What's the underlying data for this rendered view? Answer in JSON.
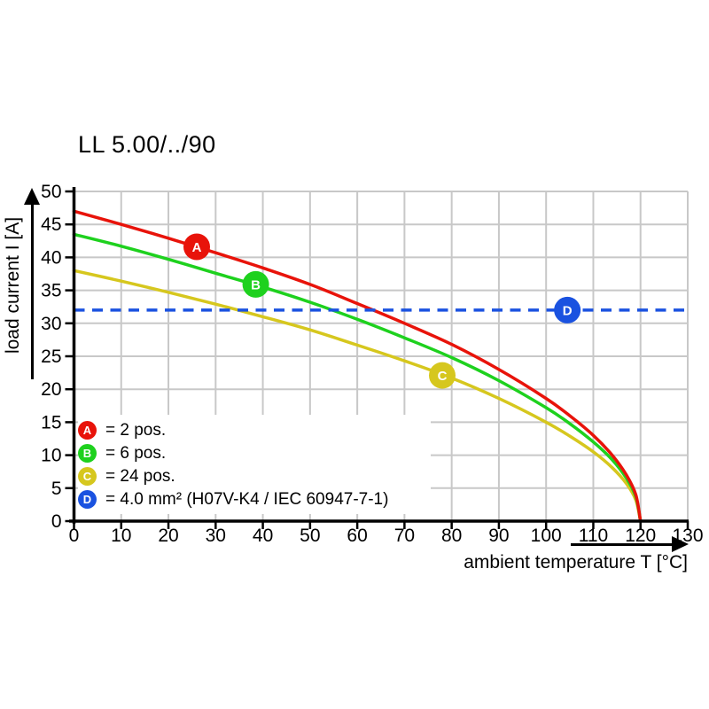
{
  "chart_data": {
    "type": "line",
    "title": "LL 5.00/../90",
    "xlabel": "ambient temperature T [°C]",
    "ylabel": "load current I [A]",
    "xlim": [
      0,
      130
    ],
    "ylim": [
      0,
      50
    ],
    "x_ticks": [
      0,
      10,
      20,
      30,
      40,
      50,
      60,
      70,
      80,
      90,
      100,
      110,
      120,
      130
    ],
    "y_ticks": [
      0,
      5,
      10,
      15,
      20,
      25,
      30,
      35,
      40,
      45,
      50
    ],
    "grid": true,
    "legend_position": "bottom-left",
    "colors": {
      "grid": "#c8c8c8",
      "axis": "#000000",
      "background": "#ffffff",
      "marker_letter": "#ffffff"
    },
    "series": [
      {
        "id": "A",
        "label": "2 pos.",
        "color": "#e8130a",
        "line": "solid",
        "x": [
          0,
          10,
          20,
          30,
          40,
          50,
          60,
          70,
          80,
          90,
          100,
          105,
          110,
          114,
          117,
          119,
          120
        ],
        "y": [
          47,
          45,
          42.9,
          40.7,
          38.4,
          35.9,
          33,
          30,
          26.8,
          23,
          18.6,
          16,
          13,
          10,
          7,
          4,
          0
        ],
        "marker": {
          "letter": "A",
          "x": 26,
          "y": 41.6
        }
      },
      {
        "id": "B",
        "label": "6 pos.",
        "color": "#1ed11e",
        "line": "solid",
        "x": [
          0,
          10,
          20,
          30,
          40,
          50,
          60,
          70,
          80,
          90,
          100,
          105,
          110,
          114,
          117,
          119,
          120
        ],
        "y": [
          43.5,
          41.7,
          39.7,
          37.6,
          35.5,
          33.2,
          30.6,
          27.8,
          24.8,
          21.3,
          17.2,
          14.8,
          12,
          9.3,
          6.5,
          3.7,
          0
        ],
        "marker": {
          "letter": "B",
          "x": 38.5,
          "y": 35.9
        }
      },
      {
        "id": "C",
        "label": "24 pos.",
        "color": "#d6c71e",
        "line": "solid",
        "x": [
          0,
          10,
          20,
          30,
          40,
          50,
          60,
          70,
          80,
          90,
          100,
          105,
          110,
          114,
          117,
          119,
          120
        ],
        "y": [
          38,
          36.4,
          34.7,
          32.9,
          31,
          29,
          26.7,
          24.3,
          21.7,
          18.6,
          15,
          12.9,
          10.5,
          8.1,
          5.7,
          3.2,
          0
        ],
        "marker": {
          "letter": "C",
          "x": 78,
          "y": 22.1
        }
      },
      {
        "id": "D",
        "label": "4.0 mm² (H07V-K4 / IEC 60947-7-1)",
        "color": "#1a52e0",
        "line": "dashed",
        "x": [
          0,
          130
        ],
        "y": [
          32,
          32
        ],
        "marker": {
          "letter": "D",
          "x": 104.5,
          "y": 32
        }
      }
    ],
    "legend": {
      "items": [
        {
          "letter": "A",
          "text": "= 2 pos."
        },
        {
          "letter": "B",
          "text": "= 6 pos."
        },
        {
          "letter": "C",
          "text": "= 24 pos."
        },
        {
          "letter": "D",
          "text": "= 4.0 mm² (H07V-K4 / IEC 60947-7-1)"
        }
      ]
    }
  }
}
